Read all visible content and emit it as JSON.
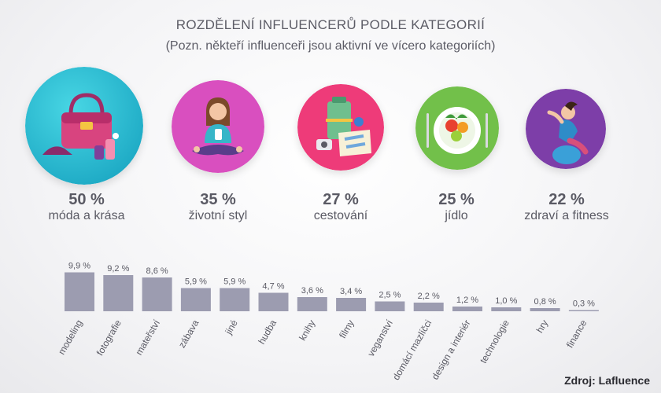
{
  "title": "ROZDĚLENÍ INFLUENCERŮ PODLE KATEGORIÍ",
  "subtitle": "(Pozn. někteří influenceři jsou aktivní ve vícero kategoriích)",
  "top_categories": [
    {
      "value": "50 %",
      "label": "móda a krása",
      "color": "#2ec4d6",
      "icon": "handbag-icon"
    },
    {
      "value": "35 %",
      "label": "životní styl",
      "color": "#d94fbf",
      "icon": "person-phone-icon"
    },
    {
      "value": "27 %",
      "label": "cestování",
      "color": "#ee3b79",
      "icon": "travel-icon"
    },
    {
      "value": "25 %",
      "label": "jídlo",
      "color": "#72c04a",
      "icon": "food-plate-icon"
    },
    {
      "value": "22 %",
      "label": "zdraví a fitness",
      "color": "#7d3ea8",
      "icon": "fitness-icon"
    }
  ],
  "chart_data": {
    "type": "bar",
    "categories": [
      "modeling",
      "fotografie",
      "mateřství",
      "zábava",
      "jiné",
      "hudba",
      "knihy",
      "filmy",
      "veganství",
      "domácí mazlíčci",
      "design a interiér",
      "technologie",
      "hry",
      "finance"
    ],
    "values": [
      9.9,
      9.2,
      8.6,
      5.9,
      5.9,
      4.7,
      3.6,
      3.4,
      2.5,
      2.2,
      1.2,
      1.0,
      0.8,
      0.3
    ],
    "value_labels": [
      "9,9 %",
      "9,2 %",
      "8,6 %",
      "5,9 %",
      "5,9 %",
      "4,7 %",
      "3,6 %",
      "3,4 %",
      "2,5 %",
      "2,2 %",
      "1,2 %",
      "1,0 %",
      "0,8 %",
      "0,3 %"
    ],
    "bar_color": "#9c9cb0",
    "ylim": [
      0,
      10
    ]
  },
  "source": "Zdroj: Lafluence"
}
